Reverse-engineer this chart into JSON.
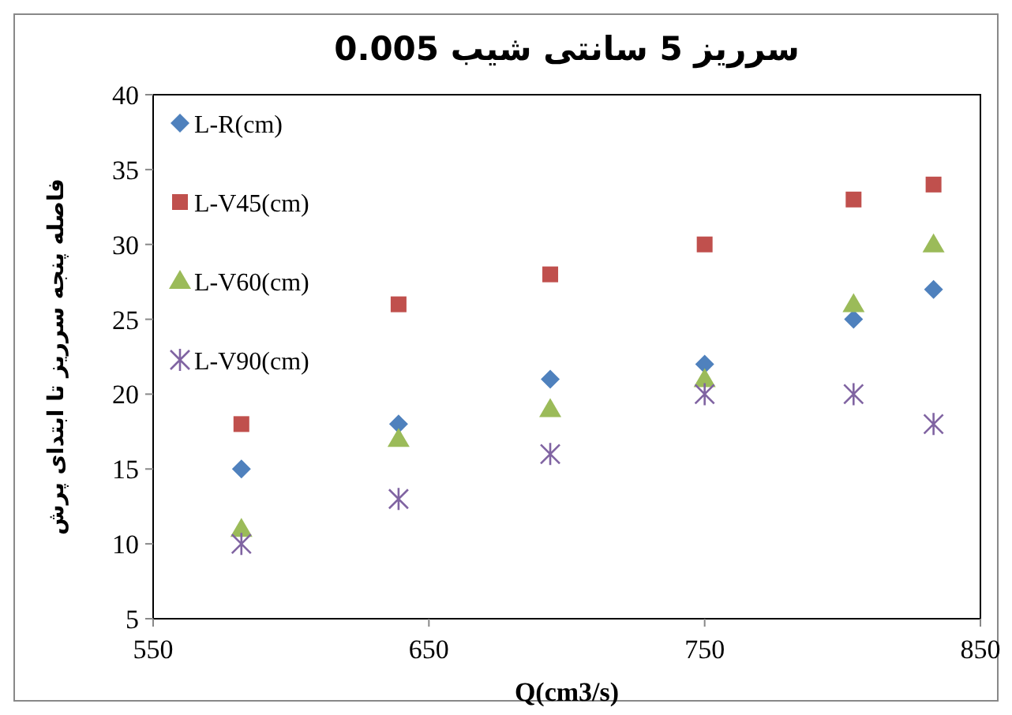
{
  "chart_data": {
    "type": "scatter",
    "title": "سرریز 5 سانتی شیب 0.005",
    "xlabel": "Q(cm3/s)",
    "ylabel": "فاصله پنجه سرریز  تا ابتدای پرش",
    "x": [
      582,
      639,
      694,
      750,
      804,
      833
    ],
    "series": [
      {
        "name": "L-R(cm)",
        "color": "#4f81bd",
        "marker": "diamond",
        "values": [
          15,
          18,
          21,
          22,
          25,
          27
        ]
      },
      {
        "name": "L-V45(cm)",
        "color": "#c0504d",
        "marker": "square",
        "values": [
          18,
          26,
          28,
          30,
          33,
          34
        ]
      },
      {
        "name": "L-V60(cm)",
        "color": "#9bbb59",
        "marker": "triangle",
        "values": [
          11,
          17,
          19,
          21,
          26,
          30
        ]
      },
      {
        "name": "L-V90(cm)",
        "color": "#8064a2",
        "marker": "cross",
        "values": [
          10,
          13,
          16,
          20,
          20,
          18
        ]
      }
    ],
    "xlim": [
      550,
      850
    ],
    "xticks": [
      550,
      650,
      750,
      850
    ],
    "ylim": [
      5,
      40
    ],
    "yticks": [
      5,
      10,
      15,
      20,
      25,
      30,
      35,
      40
    ],
    "grid": false,
    "legend": "top left"
  }
}
